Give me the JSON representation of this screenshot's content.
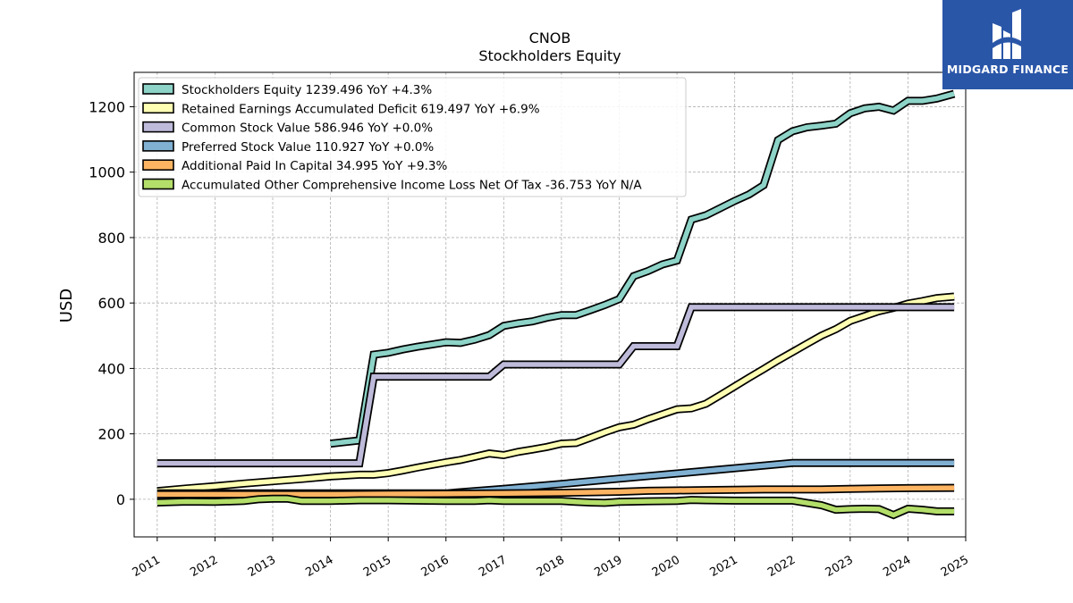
{
  "brand": {
    "name": "MIDGARD FINANCE",
    "bg_color": "#2a56a8"
  },
  "chart_data": {
    "type": "line",
    "title": "CNOB",
    "subtitle": "Stockholders  Equity",
    "xlabel": "",
    "ylabel": "USD",
    "xlim": [
      2010.6,
      2025.0
    ],
    "ylim": [
      -115,
      1305
    ],
    "x_ticks": [
      "2011",
      "2012",
      "2013",
      "2014",
      "2015",
      "2016",
      "2017",
      "2018",
      "2019",
      "2020",
      "2021",
      "2022",
      "2023",
      "2024",
      "2025"
    ],
    "y_ticks": [
      0,
      200,
      400,
      600,
      800,
      1000,
      1200
    ],
    "grid": true,
    "legend_position": "upper-left",
    "series": [
      {
        "name": "Stockholders Equity  1239.496 YoY +4.3%",
        "color": "#8dd3c7",
        "points": [
          [
            2014.0,
            170
          ],
          [
            2014.5,
            180
          ],
          [
            2014.75,
            442
          ],
          [
            2015.0,
            448
          ],
          [
            2015.25,
            458
          ],
          [
            2015.5,
            466
          ],
          [
            2015.75,
            473
          ],
          [
            2016.0,
            480
          ],
          [
            2016.25,
            478
          ],
          [
            2016.5,
            488
          ],
          [
            2016.75,
            502
          ],
          [
            2017.0,
            530
          ],
          [
            2017.25,
            538
          ],
          [
            2017.5,
            544
          ],
          [
            2017.75,
            555
          ],
          [
            2018.0,
            563
          ],
          [
            2018.25,
            563
          ],
          [
            2018.5,
            578
          ],
          [
            2018.75,
            594
          ],
          [
            2019.0,
            612
          ],
          [
            2019.25,
            682
          ],
          [
            2019.5,
            698
          ],
          [
            2019.75,
            718
          ],
          [
            2020.0,
            730
          ],
          [
            2020.25,
            855
          ],
          [
            2020.5,
            868
          ],
          [
            2020.75,
            890
          ],
          [
            2021.0,
            912
          ],
          [
            2021.25,
            932
          ],
          [
            2021.5,
            960
          ],
          [
            2021.75,
            1098
          ],
          [
            2022.0,
            1125
          ],
          [
            2022.25,
            1137
          ],
          [
            2022.5,
            1142
          ],
          [
            2022.75,
            1148
          ],
          [
            2023.0,
            1180
          ],
          [
            2023.25,
            1195
          ],
          [
            2023.5,
            1200
          ],
          [
            2023.75,
            1188
          ],
          [
            2024.0,
            1218
          ],
          [
            2024.25,
            1218
          ],
          [
            2024.5,
            1225
          ],
          [
            2024.8,
            1239.5
          ]
        ]
      },
      {
        "name": "Retained Earnings Accumulated Deficit  619.497 YoY +6.9%",
        "color": "#ffffb3",
        "points": [
          [
            2011.0,
            25
          ],
          [
            2011.5,
            33
          ],
          [
            2012.0,
            40
          ],
          [
            2012.5,
            48
          ],
          [
            2013.0,
            55
          ],
          [
            2013.5,
            62
          ],
          [
            2014.0,
            70
          ],
          [
            2014.5,
            75
          ],
          [
            2014.75,
            75
          ],
          [
            2015.0,
            80
          ],
          [
            2015.25,
            88
          ],
          [
            2015.5,
            97
          ],
          [
            2015.75,
            105
          ],
          [
            2016.0,
            113
          ],
          [
            2016.25,
            120
          ],
          [
            2016.5,
            130
          ],
          [
            2016.75,
            140
          ],
          [
            2017.0,
            135
          ],
          [
            2017.25,
            145
          ],
          [
            2017.5,
            152
          ],
          [
            2017.75,
            160
          ],
          [
            2018.0,
            170
          ],
          [
            2018.25,
            172
          ],
          [
            2018.5,
            188
          ],
          [
            2018.75,
            205
          ],
          [
            2019.0,
            220
          ],
          [
            2019.25,
            228
          ],
          [
            2019.5,
            245
          ],
          [
            2019.75,
            260
          ],
          [
            2020.0,
            275
          ],
          [
            2020.25,
            278
          ],
          [
            2020.5,
            292
          ],
          [
            2020.75,
            318
          ],
          [
            2021.0,
            345
          ],
          [
            2021.25,
            372
          ],
          [
            2021.5,
            398
          ],
          [
            2021.75,
            425
          ],
          [
            2022.0,
            450
          ],
          [
            2022.25,
            475
          ],
          [
            2022.5,
            500
          ],
          [
            2022.75,
            520
          ],
          [
            2023.0,
            545
          ],
          [
            2023.25,
            560
          ],
          [
            2023.5,
            575
          ],
          [
            2023.75,
            585
          ],
          [
            2024.0,
            598
          ],
          [
            2024.25,
            606
          ],
          [
            2024.5,
            615
          ],
          [
            2024.8,
            619.5
          ]
        ]
      },
      {
        "name": "Common Stock Value  586.946 YoY +0.0%",
        "color": "#bebada",
        "points": [
          [
            2011.0,
            110
          ],
          [
            2014.5,
            110
          ],
          [
            2014.75,
            375
          ],
          [
            2016.75,
            375
          ],
          [
            2017.0,
            412
          ],
          [
            2019.0,
            412
          ],
          [
            2019.25,
            468
          ],
          [
            2020.0,
            468
          ],
          [
            2020.25,
            587
          ],
          [
            2024.8,
            587
          ]
        ]
      },
      {
        "name": "Preferred Stock Value  110.927 YoY +0.0%",
        "color": "#80b1d3",
        "points": [
          [
            2011.0,
            18
          ],
          [
            2016.0,
            18
          ],
          [
            2016.5,
            25
          ],
          [
            2017.0,
            32
          ],
          [
            2018.0,
            47
          ],
          [
            2019.0,
            63
          ],
          [
            2020.0,
            79
          ],
          [
            2021.0,
            95
          ],
          [
            2022.0,
            110.9
          ],
          [
            2024.8,
            110.9
          ]
        ]
      },
      {
        "name": "Additional Paid In Capital  34.995 YoY +9.3%",
        "color": "#fdb462",
        "points": [
          [
            2011.0,
            15
          ],
          [
            2012.0,
            15
          ],
          [
            2013.0,
            15
          ],
          [
            2014.0,
            15
          ],
          [
            2015.0,
            16
          ],
          [
            2016.0,
            17
          ],
          [
            2017.0,
            18
          ],
          [
            2018.0,
            20
          ],
          [
            2019.0,
            23
          ],
          [
            2019.5,
            26
          ],
          [
            2020.0,
            27
          ],
          [
            2020.5,
            28
          ],
          [
            2021.0,
            29
          ],
          [
            2021.5,
            30
          ],
          [
            2022.0,
            30
          ],
          [
            2022.5,
            30
          ],
          [
            2023.0,
            32
          ],
          [
            2023.5,
            33
          ],
          [
            2024.0,
            34
          ],
          [
            2024.8,
            35
          ]
        ]
      },
      {
        "name": "Accumulated Other Comprehensive Income Loss Net Of Tax  -36.753 YoY N/A",
        "color": "#b3de69",
        "points": [
          [
            2011.0,
            -10
          ],
          [
            2011.5,
            -7
          ],
          [
            2012.0,
            -8
          ],
          [
            2012.5,
            -5
          ],
          [
            2012.75,
            0
          ],
          [
            2013.0,
            2
          ],
          [
            2013.25,
            2
          ],
          [
            2013.5,
            -5
          ],
          [
            2014.0,
            -5
          ],
          [
            2014.5,
            -3
          ],
          [
            2015.0,
            -3
          ],
          [
            2015.5,
            -4
          ],
          [
            2016.0,
            -5
          ],
          [
            2016.5,
            -5
          ],
          [
            2016.75,
            -3
          ],
          [
            2017.0,
            -5
          ],
          [
            2017.5,
            -5
          ],
          [
            2018.0,
            -5
          ],
          [
            2018.25,
            -8
          ],
          [
            2018.5,
            -10
          ],
          [
            2018.75,
            -11
          ],
          [
            2019.0,
            -8
          ],
          [
            2019.5,
            -6
          ],
          [
            2020.0,
            -5
          ],
          [
            2020.25,
            -2
          ],
          [
            2020.5,
            -3
          ],
          [
            2021.0,
            -4
          ],
          [
            2022.0,
            -4
          ],
          [
            2022.5,
            -18
          ],
          [
            2022.75,
            -32
          ],
          [
            2023.0,
            -30
          ],
          [
            2023.25,
            -29
          ],
          [
            2023.5,
            -30
          ],
          [
            2023.75,
            -48
          ],
          [
            2024.0,
            -29
          ],
          [
            2024.25,
            -32
          ],
          [
            2024.5,
            -37
          ],
          [
            2024.8,
            -36.8
          ]
        ]
      }
    ]
  }
}
